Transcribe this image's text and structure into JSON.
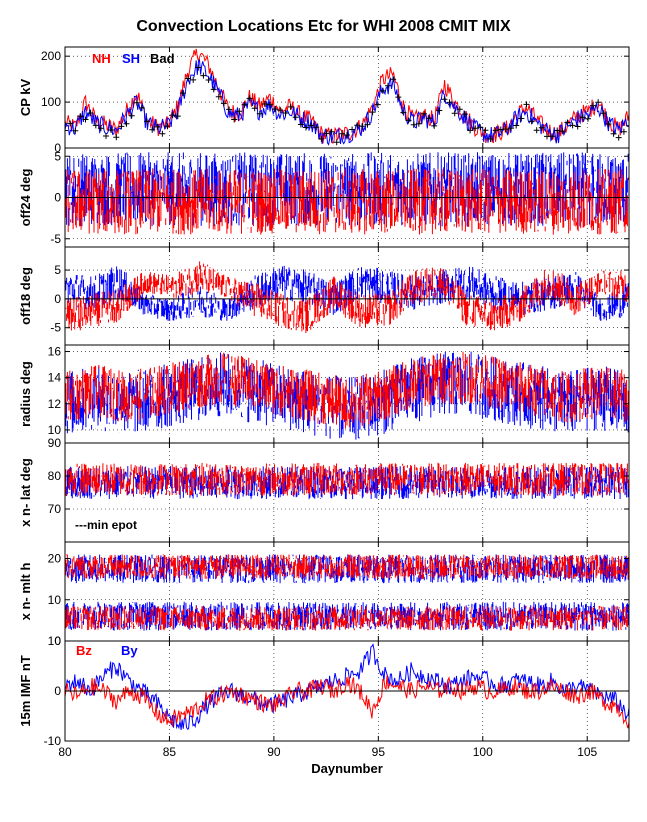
{
  "title": "Convection Locations Etc for WHI 2008 CMIT MIX",
  "colors": {
    "red": "#ff0000",
    "blue": "#0000ff",
    "black": "#000000"
  },
  "chart_data": {
    "type": "line",
    "xlabel": "Daynumber",
    "xlim": [
      80,
      107
    ],
    "xticks": [
      "80",
      "85",
      "90",
      "95",
      "100",
      "105"
    ],
    "panels": [
      {
        "id": "cp",
        "ylabel": "CP kV",
        "ylim": [
          0,
          220
        ],
        "yticks": [
          {
            "v": 0,
            "label": "0"
          },
          {
            "v": 100,
            "label": "100"
          },
          {
            "v": 200,
            "label": "200"
          }
        ],
        "legend": [
          {
            "label": "NH",
            "color": "#ff0000"
          },
          {
            "label": "SH",
            "color": "#0000ff"
          },
          {
            "label": "Bad",
            "color": "#000000"
          }
        ],
        "series": [
          {
            "name": "NH",
            "color": "#ff0000",
            "style": "noisy",
            "values": [
              55,
              45,
              100,
              60,
              50,
              40,
              80,
              120,
              60,
              45,
              50,
              90,
              170,
              210,
              180,
              130,
              80,
              75,
              110,
              90,
              110,
              80,
              90,
              70,
              60,
              30,
              25,
              30,
              35,
              50,
              90,
              150,
              160,
              90,
              60,
              70,
              60,
              140,
              100,
              70,
              45,
              30,
              30,
              40,
              70,
              90,
              60,
              40,
              30,
              50,
              70,
              80,
              100,
              60,
              40,
              70
            ]
          },
          {
            "name": "SH",
            "color": "#0000ff",
            "style": "noisy",
            "values": [
              50,
              42,
              80,
              55,
              45,
              38,
              70,
              100,
              55,
              42,
              48,
              80,
              150,
              180,
              160,
              120,
              75,
              70,
              95,
              80,
              95,
              72,
              80,
              65,
              55,
              28,
              24,
              28,
              33,
              45,
              80,
              130,
              140,
              80,
              55,
              65,
              55,
              120,
              90,
              65,
              42,
              28,
              28,
              38,
              65,
              80,
              55,
              38,
              28,
              45,
              65,
              72,
              90,
              55,
              38,
              65
            ]
          },
          {
            "name": "Bad",
            "color": "#000000",
            "style": "markers",
            "values": [
              40,
              35,
              70,
              45,
              35,
              30,
              60,
              90,
              45,
              35,
              40,
              70,
              140,
              170,
              150,
              110,
              65,
              60,
              90,
              75,
              90,
              65,
              75,
              55,
              45,
              20,
              18,
              22,
              25,
              40,
              75,
              120,
              130,
              75,
              45,
              55,
              45,
              110,
              80,
              55,
              35,
              20,
              20,
              30,
              55,
              75,
              45,
              30,
              20,
              40,
              55,
              65,
              80,
              45,
              30,
              55
            ]
          }
        ]
      },
      {
        "id": "off24",
        "ylabel": "off24 deg",
        "ylim": [
          -6,
          6
        ],
        "yticks": [
          {
            "v": -5,
            "label": "-5"
          },
          {
            "v": 0,
            "label": "0"
          },
          {
            "v": 5,
            "label": "5"
          }
        ],
        "zero_line": true,
        "series": [
          {
            "name": "SH",
            "color": "#0000ff",
            "style": "band",
            "values": [
              1,
              1,
              1,
              1,
              1,
              1,
              1,
              1,
              1,
              1
            ],
            "spread": [
              4.5,
              4.5,
              4.5,
              4.5,
              4.5,
              4.5,
              4.5,
              4.5,
              4.5,
              4.5
            ]
          },
          {
            "name": "NH",
            "color": "#ff0000",
            "style": "band",
            "values": [
              -0.5,
              -0.5,
              -0.5,
              -0.5,
              -0.5,
              -0.5,
              -0.5,
              -0.5,
              -0.5,
              -0.5
            ],
            "spread": [
              4,
              4,
              4,
              4,
              4,
              4,
              4,
              4,
              4,
              4
            ]
          }
        ]
      },
      {
        "id": "off18",
        "ylabel": "off18 deg",
        "ylim": [
          -8,
          9
        ],
        "yticks": [
          {
            "v": -5,
            "label": "-5"
          },
          {
            "v": 0,
            "label": "0"
          },
          {
            "v": 5,
            "label": "5"
          }
        ],
        "zero_line": true,
        "series": [
          {
            "name": "SH",
            "color": "#0000ff",
            "style": "band",
            "values": [
              2,
              1,
              3,
              -1,
              -2,
              0,
              -2,
              1,
              3,
              2,
              0,
              3,
              2,
              1,
              2,
              3,
              1,
              0,
              1,
              2,
              -2,
              0
            ],
            "spread": [
              3,
              3,
              3,
              2,
              2,
              3,
              2,
              3,
              3,
              3,
              3,
              3,
              3,
              3,
              3,
              3,
              3,
              3,
              3,
              3,
              2,
              3
            ]
          },
          {
            "name": "NH",
            "color": "#ff0000",
            "style": "band",
            "values": [
              -3,
              -2,
              -1,
              3,
              2,
              4,
              2,
              0,
              -2,
              -3,
              1,
              -2,
              -2,
              2,
              3,
              -2,
              -3,
              -1,
              3,
              0,
              3,
              2
            ],
            "spread": [
              3,
              3,
              3,
              2,
              2,
              3,
              2,
              3,
              3,
              3,
              3,
              3,
              3,
              3,
              3,
              3,
              3,
              3,
              3,
              3,
              2,
              3
            ]
          }
        ]
      },
      {
        "id": "radius",
        "ylabel": "radius deg",
        "ylim": [
          9,
          16.5
        ],
        "yticks": [
          {
            "v": 10,
            "label": "10"
          },
          {
            "v": 12,
            "label": "12"
          },
          {
            "v": 14,
            "label": "14"
          },
          {
            "v": 16,
            "label": "16"
          }
        ],
        "series": [
          {
            "name": "SH",
            "color": "#0000ff",
            "style": "band",
            "values": [
              12,
              12.5,
              12,
              12.5,
              13,
              13.5,
              13,
              12.5,
              12,
              11.5,
              12,
              13,
              13.5,
              13.5,
              13,
              12.5,
              12,
              12.5,
              12
            ],
            "spread": [
              2.5,
              2.5,
              2.5,
              2.5,
              2.5,
              2.5,
              2.5,
              2.5,
              2.5,
              2.5,
              2.5,
              2.5,
              2.5,
              2.5,
              2.5,
              2.5,
              2.5,
              2.5,
              2.5
            ]
          },
          {
            "name": "NH",
            "color": "#ff0000",
            "style": "band",
            "values": [
              12.5,
              13,
              12.5,
              13,
              13.5,
              14,
              13.5,
              13,
              12.5,
              12,
              12.5,
              13.5,
              14,
              14,
              13.5,
              13,
              12.5,
              13,
              12.5
            ],
            "spread": [
              2,
              2,
              2,
              2,
              2,
              2,
              2,
              2,
              2,
              2,
              2,
              2,
              2,
              2,
              2,
              2,
              2,
              2,
              2
            ]
          }
        ]
      },
      {
        "id": "lat",
        "ylabel": "x n- lat deg",
        "ylim": [
          60,
          90
        ],
        "yticks": [
          {
            "v": 60,
            "label": ""
          },
          {
            "v": 70,
            "label": "70"
          },
          {
            "v": 80,
            "label": "80"
          },
          {
            "v": 90,
            "label": "90"
          }
        ],
        "annotation": "---min epot",
        "series": [
          {
            "name": "SH",
            "color": "#0000ff",
            "style": "band",
            "values": [
              78,
              78,
              78,
              78,
              78,
              78,
              78,
              78
            ],
            "spread": [
              5,
              5,
              5,
              5,
              5,
              5,
              5,
              5
            ]
          },
          {
            "name": "NH",
            "color": "#ff0000",
            "style": "band",
            "values": [
              79,
              79,
              79,
              79,
              79,
              79,
              79,
              79
            ],
            "spread": [
              5,
              5,
              5,
              5,
              5,
              5,
              5,
              5
            ]
          }
        ]
      },
      {
        "id": "mlt",
        "ylabel": "x n- mlt h",
        "ylim": [
          0,
          24
        ],
        "yticks": [
          {
            "v": 0,
            "label": "0"
          },
          {
            "v": 10,
            "label": "10"
          },
          {
            "v": 20,
            "label": "20"
          }
        ],
        "series": [
          {
            "name": "SH-dusk",
            "color": "#0000ff",
            "style": "band",
            "values": [
              17.5,
              17.5,
              17.5,
              17.5,
              17.5,
              17.5,
              17.5,
              17.5
            ],
            "spread": [
              3.5,
              3.5,
              3.5,
              3.5,
              3.5,
              3.5,
              3.5,
              3.5
            ]
          },
          {
            "name": "SH-dawn",
            "color": "#0000ff",
            "style": "band",
            "values": [
              6,
              6,
              6,
              6,
              6,
              6,
              6,
              6
            ],
            "spread": [
              3.5,
              3.5,
              3.5,
              3.5,
              3.5,
              3.5,
              3.5,
              3.5
            ]
          },
          {
            "name": "NH-dusk",
            "color": "#ff0000",
            "style": "band",
            "values": [
              18,
              18,
              18,
              18,
              18,
              18,
              18,
              18
            ],
            "spread": [
              3,
              3,
              3,
              3,
              3,
              3,
              3,
              3
            ]
          },
          {
            "name": "NH-dawn",
            "color": "#ff0000",
            "style": "band",
            "values": [
              5.5,
              5.5,
              5.5,
              5.5,
              5.5,
              5.5,
              5.5,
              5.5
            ],
            "spread": [
              3,
              3,
              3,
              3,
              3,
              3,
              3,
              3
            ]
          }
        ]
      },
      {
        "id": "imf",
        "ylabel": "15m IMF nT",
        "ylim": [
          -10,
          10
        ],
        "yticks": [
          {
            "v": -10,
            "label": "-10"
          },
          {
            "v": 0,
            "label": "0"
          },
          {
            "v": 10,
            "label": "10"
          }
        ],
        "zero_line": true,
        "legend": [
          {
            "label": "Bz",
            "color": "#ff0000"
          },
          {
            "label": "By",
            "color": "#0000ff"
          }
        ],
        "series": [
          {
            "name": "By",
            "color": "#0000ff",
            "style": "noisy",
            "values": [
              1,
              2,
              0,
              3,
              5,
              2,
              0,
              -2,
              -5,
              -7,
              -6,
              -3,
              -1,
              0,
              -1,
              -2,
              -3,
              -2,
              -1,
              0,
              1,
              2,
              3,
              4,
              8,
              3,
              2,
              4,
              3,
              2,
              1,
              2,
              3,
              2,
              1,
              2,
              2,
              1,
              2,
              0,
              1,
              0,
              -1,
              -2,
              -5
            ]
          },
          {
            "name": "Bz",
            "color": "#ff0000",
            "style": "noisy",
            "values": [
              0,
              -1,
              1,
              0,
              -2,
              0,
              -1,
              -4,
              -6,
              -5,
              -4,
              -2,
              -1,
              0,
              -1,
              -2,
              -3,
              -2,
              0,
              0,
              1,
              0,
              2,
              0,
              -4,
              2,
              1,
              0,
              1,
              0,
              1,
              0,
              1,
              0,
              0,
              1,
              0,
              0,
              1,
              0,
              -1,
              0,
              -2,
              -3,
              -6
            ]
          }
        ]
      }
    ]
  }
}
